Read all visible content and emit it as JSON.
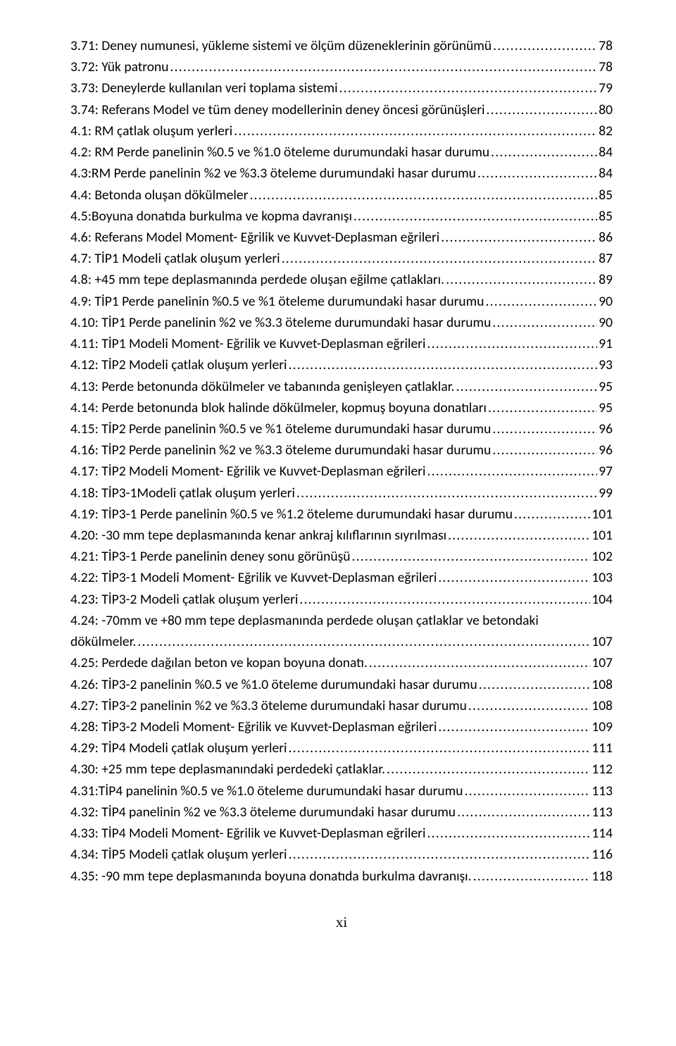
{
  "entries": [
    {
      "label": "3.71: Deney numunesi, yükleme sistemi ve ölçüm düzeneklerinin görünümü",
      "page": "78"
    },
    {
      "label": "3.72: Yük patronu",
      "page": "78"
    },
    {
      "label": "3.73: Deneylerde kullanılan veri toplama sistemi",
      "page": "79"
    },
    {
      "label": "3.74: Referans Model ve tüm deney modellerinin deney öncesi görünüşleri",
      "page": "80"
    },
    {
      "label": "4.1: RM çatlak oluşum yerleri",
      "page": "82"
    },
    {
      "label": "4.2: RM Perde panelinin %0.5 ve %1.0 öteleme durumundaki hasar durumu",
      "page": "84"
    },
    {
      "label": "4.3:RM Perde panelinin %2 ve %3.3 öteleme durumundaki hasar durumu",
      "page": "84"
    },
    {
      "label": "4.4: Betonda oluşan dökülmeler",
      "page": "85"
    },
    {
      "label": "4.5:Boyuna donatıda burkulma ve kopma davranışı",
      "page": "85"
    },
    {
      "label": "4.6: Referans Model Moment- Eğrilik ve Kuvvet-Deplasman eğrileri",
      "page": "86"
    },
    {
      "label": "4.7: TİP1 Modeli çatlak oluşum yerleri",
      "page": "87"
    },
    {
      "label": "4.8: +45 mm tepe deplasmanında perdede oluşan eğilme çatlakları.",
      "page": "89"
    },
    {
      "label": "4.9: TİP1 Perde panelinin %0.5 ve %1 öteleme durumundaki hasar durumu",
      "page": "90"
    },
    {
      "label": "4.10: TİP1 Perde panelinin %2 ve %3.3 öteleme durumundaki hasar durumu",
      "page": "90"
    },
    {
      "label": "4.11: TİP1 Modeli Moment- Eğrilik ve Kuvvet-Deplasman eğrileri",
      "page": "91"
    },
    {
      "label": "4.12: TİP2 Modeli çatlak oluşum yerleri",
      "page": "93"
    },
    {
      "label": "4.13:  Perde betonunda dökülmeler ve tabanında genişleyen çatlaklar.",
      "page": "95"
    },
    {
      "label": "4.14: Perde betonunda blok halinde dökülmeler, kopmuş boyuna donatıları",
      "page": "95"
    },
    {
      "label": "4.15: TİP2 Perde panelinin %0.5 ve %1 öteleme durumundaki hasar durumu",
      "page": "96"
    },
    {
      "label": "4.16: TİP2 Perde panelinin %2 ve %3.3 öteleme durumundaki hasar durumu",
      "page": "96"
    },
    {
      "label": "4.17: TİP2 Modeli Moment- Eğrilik ve Kuvvet-Deplasman eğrileri",
      "page": "97"
    },
    {
      "label": "4.18: TİP3-1Modeli çatlak oluşum yerleri",
      "page": "99"
    },
    {
      "label": "4.19: TİP3-1 Perde panelinin %0.5 ve %1.2 öteleme durumundaki hasar durumu",
      "page": "101"
    },
    {
      "label": "4.20: -30 mm tepe deplasmanında kenar ankraj kılıflarının sıyrılması",
      "page": "101"
    },
    {
      "label": "4.21: TİP3-1 Perde panelinin deney sonu görünüşü",
      "page": "102"
    },
    {
      "label": "4.22: TİP3-1 Modeli Moment- Eğrilik ve Kuvvet-Deplasman eğrileri",
      "page": "103"
    },
    {
      "label": "4.23: TİP3-2 Modeli çatlak oluşum yerleri",
      "page": "104"
    },
    {
      "label": "4.24: -70mm ve +80 mm tepe deplasmanında perdede oluşan çatlaklar ve betondaki",
      "cont": "dökülmeler.",
      "page": "107"
    },
    {
      "label": "4.25: Perdede dağılan beton ve kopan boyuna donatı.",
      "page": "107"
    },
    {
      "label": "4.26: TİP3-2 panelinin %0.5 ve %1.0 öteleme durumundaki hasar durumu",
      "page": "108"
    },
    {
      "label": "4.27: TİP3-2 panelinin %2 ve %3.3 öteleme durumundaki hasar durumu",
      "page": "108"
    },
    {
      "label": "4.28: TİP3-2 Modeli Moment- Eğrilik ve Kuvvet-Deplasman eğrileri",
      "page": "109"
    },
    {
      "label": "4.29: TİP4 Modeli çatlak oluşum yerleri",
      "page": "111"
    },
    {
      "label": "4.30: +25 mm  tepe deplasmanındaki perdedeki  çatlaklar.",
      "page": "112"
    },
    {
      "label": "4.31:TİP4 panelinin %0.5 ve %1.0 öteleme durumundaki hasar durumu",
      "page": "113"
    },
    {
      "label": "4.32: TİP4 panelinin %2 ve %3.3 öteleme durumundaki hasar durumu",
      "page": "113"
    },
    {
      "label": "4.33: TİP4 Modeli Moment- Eğrilik ve Kuvvet-Deplasman eğrileri",
      "page": "114"
    },
    {
      "label": "4.34: TİP5 Modeli çatlak oluşum yerleri",
      "page": "116"
    },
    {
      "label": "4.35: -90 mm tepe deplasmanında boyuna donatıda burkulma davranışı.",
      "page": "118"
    }
  ],
  "footer": "xi"
}
